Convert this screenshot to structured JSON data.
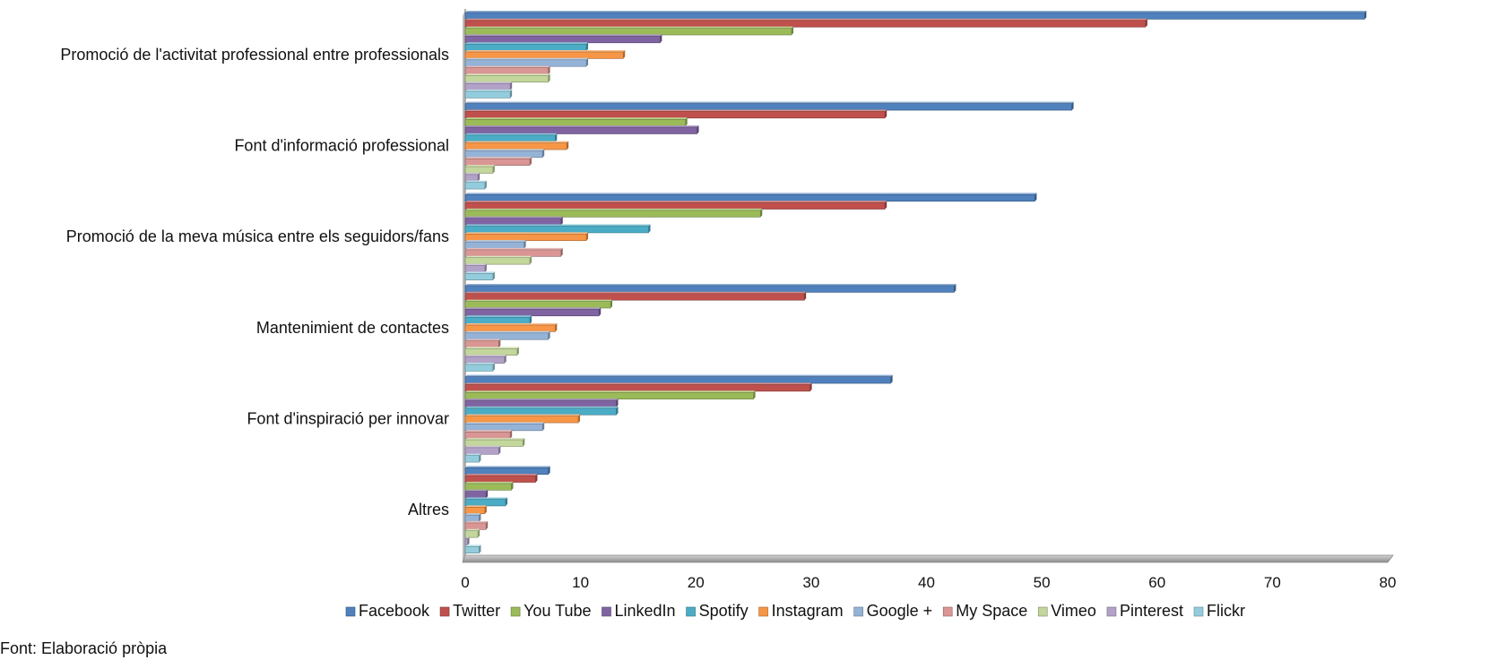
{
  "chart_data": {
    "type": "bar",
    "orientation": "horizontal",
    "categories": [
      "Promoció de l'activitat professional entre professionals",
      "Font d'informació professional",
      "Promoció de la meva música entre els seguidors/fans",
      "Mantenimient de contactes",
      "Font d'inspiració per innovar",
      "Altres"
    ],
    "series": [
      {
        "name": "Facebook",
        "color": "#4F81BD",
        "values": [
          78,
          52.6,
          49.4,
          42.4,
          36.9,
          7.2
        ]
      },
      {
        "name": "Twitter",
        "color": "#C0504D",
        "values": [
          59.0,
          36.4,
          36.4,
          29.4,
          29.9,
          6.1
        ]
      },
      {
        "name": "You Tube",
        "color": "#9BBB59",
        "values": [
          28.3,
          19.1,
          25.6,
          12.6,
          25.0,
          4.0
        ]
      },
      {
        "name": "LinkedIn",
        "color": "#8064A2",
        "values": [
          16.9,
          20.1,
          8.3,
          11.6,
          13.1,
          1.8
        ]
      },
      {
        "name": "Spotify",
        "color": "#4BACC6",
        "values": [
          10.5,
          7.8,
          15.9,
          5.6,
          13.1,
          3.5
        ]
      },
      {
        "name": "Instagram",
        "color": "#F79646",
        "values": [
          13.7,
          8.8,
          10.5,
          7.8,
          9.8,
          1.7
        ]
      },
      {
        "name": "Google +",
        "color": "#95B3D7",
        "values": [
          10.5,
          6.7,
          5.1,
          7.2,
          6.7,
          1.2
        ]
      },
      {
        "name": "My Space",
        "color": "#D99694",
        "values": [
          7.2,
          5.6,
          8.3,
          2.9,
          3.9,
          1.8
        ]
      },
      {
        "name": "Vimeo",
        "color": "#C3D69B",
        "values": [
          7.2,
          2.4,
          5.6,
          4.5,
          5.0,
          1.1
        ]
      },
      {
        "name": "Pinterest",
        "color": "#B3A2C7",
        "values": [
          3.9,
          1.1,
          1.7,
          3.4,
          2.9,
          0.2
        ]
      },
      {
        "name": "Flickr",
        "color": "#93CDDD",
        "values": [
          3.9,
          1.7,
          2.4,
          2.4,
          1.2,
          1.2
        ]
      }
    ],
    "xlim": [
      0,
      80
    ],
    "xticks": [
      0,
      10,
      20,
      30,
      40,
      50,
      60,
      70,
      80
    ],
    "grid": false,
    "legend_position": "bottom"
  },
  "footnote": "Font: Elaboració pròpia"
}
